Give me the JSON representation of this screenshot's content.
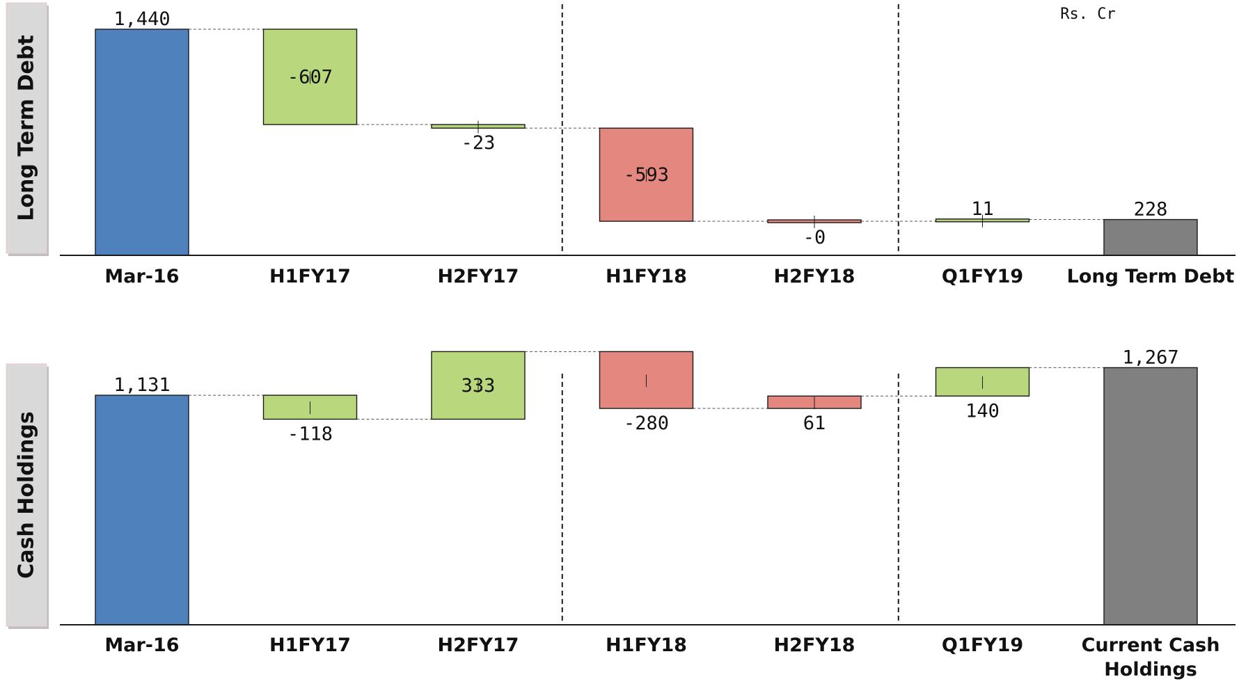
{
  "unit_note": "Rs. Cr",
  "colors": {
    "start": "#4F81BD",
    "increase": "#B9D87E",
    "decrease": "#E4877F",
    "end": "#808080",
    "label_box": "#D9D9D9"
  },
  "chart_data": [
    {
      "type": "waterfall",
      "side_label": "Long Term Debt",
      "categories": [
        "Mar-16",
        "H1FY17",
        "H2FY17",
        "H1FY18",
        "H2FY18",
        "Q1FY19",
        "Long Term Debt"
      ],
      "values": [
        1440,
        -607,
        -23,
        -593,
        0,
        11,
        228
      ],
      "value_labels": [
        "1,440",
        "-607",
        "-23",
        "-593",
        "-0",
        "11",
        "228"
      ],
      "bar_kinds": [
        "start",
        "increase",
        "increase",
        "decrease",
        "decrease",
        "increase",
        "end"
      ],
      "ylim": [
        0,
        1500
      ],
      "dividers_after": [
        "H2FY17",
        "H2FY18"
      ],
      "legend": "none",
      "grid": false
    },
    {
      "type": "waterfall",
      "side_label": "Cash Holdings",
      "categories": [
        "Mar-16",
        "H1FY17",
        "H2FY17",
        "H1FY18",
        "H2FY18",
        "Q1FY19",
        "Current Cash Holdings"
      ],
      "values": [
        1131,
        -118,
        333,
        -280,
        61,
        140,
        1267
      ],
      "value_labels": [
        "1,131",
        "-118",
        "333",
        "-280",
        "61",
        "140",
        "1,267"
      ],
      "bar_kinds": [
        "start",
        "increase",
        "increase",
        "decrease",
        "decrease",
        "increase",
        "end"
      ],
      "ylim": [
        0,
        1300
      ],
      "dividers_after": [
        "H2FY17",
        "H2FY18"
      ],
      "legend": "none",
      "grid": false
    }
  ]
}
